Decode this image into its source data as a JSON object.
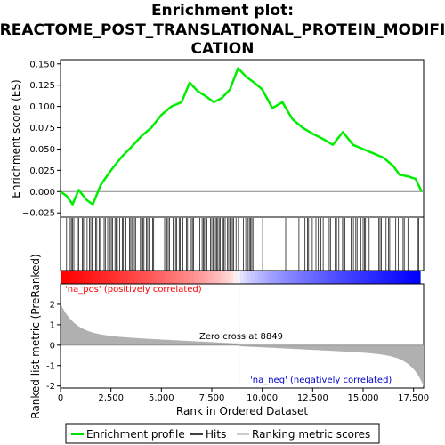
{
  "chart_data": {
    "type": "line",
    "title_lines": [
      "Enrichment plot:",
      "REACTOME_POST_TRANSLATIONAL_PROTEIN_MODIFI",
      "CATION"
    ],
    "xlabel": "Rank in Ordered Dataset",
    "es_ylabel": "Enrichment score (ES)",
    "metric_ylabel": "Ranked list metric (PreRanked)",
    "xlim": [
      0,
      18000
    ],
    "es_ylim": [
      -0.03,
      0.155
    ],
    "metric_ylim": [
      -2.1,
      3.0
    ],
    "x_ticks": [
      0,
      2500,
      5000,
      7500,
      10000,
      12500,
      15000,
      17500
    ],
    "x_tick_labels": [
      "0",
      "2,500",
      "5,000",
      "7,500",
      "10,000",
      "12,500",
      "15,000",
      "17,500"
    ],
    "es_ticks": [
      -0.025,
      0.0,
      0.025,
      0.05,
      0.075,
      0.1,
      0.125,
      0.15
    ],
    "es_tick_labels": [
      "−0.025",
      "0.000",
      "0.025",
      "0.050",
      "0.075",
      "0.100",
      "0.125",
      "0.150"
    ],
    "metric_ticks": [
      -2,
      -1,
      0,
      1,
      2
    ],
    "metric_tick_labels": [
      "-2",
      "-1",
      "0",
      "1",
      "2"
    ],
    "enrichment_profile": {
      "x": [
        0,
        300,
        600,
        900,
        1300,
        1600,
        2000,
        2500,
        3000,
        3500,
        4000,
        4500,
        5000,
        5500,
        6000,
        6400,
        6800,
        7200,
        7600,
        8000,
        8400,
        8800,
        9200,
        9600,
        10000,
        10500,
        11000,
        11500,
        12000,
        12500,
        13000,
        13500,
        14000,
        14500,
        15000,
        15500,
        16000,
        16500,
        16800,
        17200,
        17600,
        17900
      ],
      "y": [
        0.0,
        -0.005,
        -0.015,
        0.002,
        -0.01,
        -0.015,
        0.008,
        0.025,
        0.04,
        0.052,
        0.065,
        0.075,
        0.09,
        0.1,
        0.105,
        0.128,
        0.118,
        0.112,
        0.105,
        0.11,
        0.12,
        0.145,
        0.135,
        0.128,
        0.12,
        0.098,
        0.105,
        0.085,
        0.075,
        0.068,
        0.062,
        0.055,
        0.07,
        0.055,
        0.05,
        0.045,
        0.04,
        0.03,
        0.02,
        0.018,
        0.015,
        0.0
      ]
    },
    "hits_sample_every": 60,
    "zero_cross_rank": 8849,
    "zero_cross_label": "Zero cross at 8849",
    "pos_label": "'na_pos' (positively correlated)",
    "neg_label": "'na_neg' (negatively correlated)",
    "legend": [
      {
        "name": "Enrichment profile",
        "color": "#00dd00"
      },
      {
        "name": "Hits",
        "color": "#000000"
      },
      {
        "name": "Ranking metric scores",
        "color": "#bbbbbb"
      }
    ],
    "colors": {
      "profile": "#00ee00",
      "pos": "#ff0000",
      "neg": "#0000ff",
      "metric_fill": "#b0b0b0",
      "pos_label": "#ff0000",
      "neg_label": "#0000cc"
    }
  }
}
